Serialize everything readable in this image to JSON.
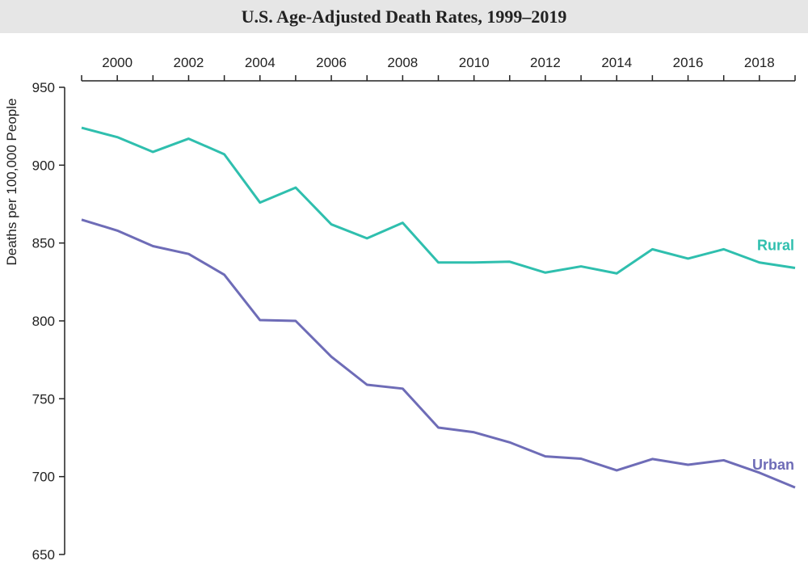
{
  "chart_data": {
    "type": "line",
    "title": "U.S. Age-Adjusted Death Rates, 1999–2019",
    "xlabel": "",
    "ylabel": "Deaths per 100,000 People",
    "xlim": [
      1999,
      2019
    ],
    "ylim": [
      650,
      950
    ],
    "x_ticks": [
      2000,
      2002,
      2004,
      2006,
      2008,
      2010,
      2012,
      2014,
      2016,
      2018
    ],
    "y_ticks": [
      650,
      700,
      750,
      800,
      850,
      900,
      950
    ],
    "x_axis_position": "top",
    "grid": false,
    "x": [
      1999,
      2000,
      2001,
      2002,
      2003,
      2004,
      2005,
      2006,
      2007,
      2008,
      2009,
      2010,
      2011,
      2012,
      2013,
      2014,
      2015,
      2016,
      2017,
      2018,
      2019
    ],
    "series": [
      {
        "name": "Rural",
        "color": "#2fbfae",
        "values": [
          924,
          918,
          908.5,
          917,
          907,
          876,
          885.6,
          862,
          853,
          863,
          837.5,
          837.5,
          838,
          831,
          835,
          830.5,
          846,
          840,
          846,
          837.5,
          834
        ]
      },
      {
        "name": "Urban",
        "color": "#6e6cb7",
        "values": [
          865,
          858,
          848,
          843,
          829.6,
          800.5,
          800,
          777,
          759,
          756.5,
          731.5,
          728.5,
          722,
          713,
          711.5,
          704,
          711.3,
          707.6,
          710.5,
          702.5,
          693
        ]
      }
    ]
  }
}
